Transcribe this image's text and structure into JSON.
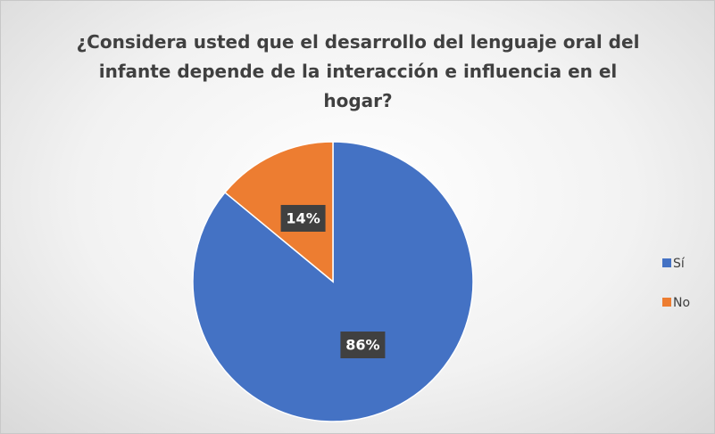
{
  "chart_data": {
    "type": "pie",
    "title": "¿Considera usted que el desarrollo del lenguaje oral del infante depende de la interacción e influencia en el hogar?",
    "categories": [
      "Sí",
      "No"
    ],
    "values": [
      86,
      14
    ],
    "value_labels": [
      "86%",
      "14%"
    ],
    "colors": [
      "#4472c4",
      "#ed7d31"
    ],
    "legend": "right"
  }
}
